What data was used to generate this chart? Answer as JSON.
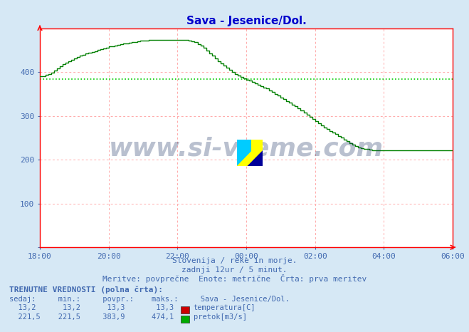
{
  "title": "Sava - Jesenice/Dol.",
  "title_color": "#0000cc",
  "bg_color": "#d6e8f5",
  "plot_bg_color": "#ffffff",
  "xlabel_texts": [
    "Slovenija / reke in morje.",
    "zadnji 12ur / 5 minut.",
    "Meritve: povprečne  Enote: metrične  Črta: prva meritev"
  ],
  "xlabel_color": "#4169b0",
  "xtick_labels": [
    "18:00",
    "20:00",
    "22:00",
    "00:00",
    "02:00",
    "04:00",
    "06:00"
  ],
  "ytick_labels": [
    "",
    "100",
    "200",
    "300",
    "400"
  ],
  "ytick_positions": [
    0,
    100,
    200,
    300,
    400
  ],
  "ylim": [
    0,
    500
  ],
  "n_points": 145,
  "axis_color": "#ff0000",
  "flow_color": "#008000",
  "flow_avg_color": "#00cc00",
  "temp_color": "#cc0000",
  "flow_avg_value": 383.9,
  "watermark": "www.si-vreme.com",
  "legend_temp": "temperatura[C]",
  "legend_flow": "pretok[m3/s]",
  "flow_data": [
    390,
    390,
    393,
    395,
    398,
    403,
    408,
    413,
    418,
    422,
    425,
    428,
    431,
    434,
    437,
    440,
    442,
    444,
    446,
    448,
    450,
    452,
    454,
    456,
    458,
    459,
    461,
    462,
    463,
    465,
    466,
    467,
    468,
    469,
    470,
    471,
    472,
    472,
    473,
    473,
    474,
    474,
    474,
    474,
    474,
    474,
    474,
    474,
    474,
    474,
    474,
    473,
    472,
    470,
    468,
    464,
    460,
    455,
    449,
    443,
    437,
    431,
    425,
    420,
    415,
    410,
    405,
    400,
    396,
    392,
    389,
    386,
    383,
    380,
    377,
    374,
    371,
    368,
    365,
    362,
    358,
    354,
    350,
    346,
    342,
    338,
    334,
    330,
    326,
    322,
    318,
    313,
    308,
    303,
    298,
    293,
    288,
    283,
    278,
    274,
    270,
    266,
    262,
    258,
    254,
    250,
    246,
    242,
    238,
    234,
    231,
    228,
    226,
    225,
    224,
    223,
    222,
    222,
    221,
    221,
    221,
    221,
    221,
    221,
    221,
    221,
    221,
    221,
    221,
    221,
    221,
    221,
    221,
    221,
    221,
    221,
    221,
    221,
    221,
    221,
    221,
    221,
    221,
    221,
    221
  ]
}
